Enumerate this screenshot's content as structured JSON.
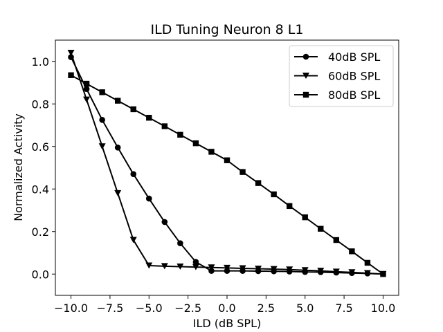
{
  "chart_data": {
    "type": "line",
    "title": "ILD Tuning Neuron 8 L1",
    "xlabel": "ILD (dB SPL)",
    "ylabel": "Normalized Activity",
    "xlim": [
      -11,
      11
    ],
    "ylim": [
      -0.1,
      1.1
    ],
    "xticks": [
      -10.0,
      -7.5,
      -5.0,
      -2.5,
      0.0,
      2.5,
      5.0,
      7.5,
      10.0
    ],
    "xtick_labels": [
      "−10.0",
      "−7.5",
      "−5.0",
      "−2.5",
      "0.0",
      "2.5",
      "5.0",
      "7.5",
      "10.0"
    ],
    "yticks": [
      0.0,
      0.2,
      0.4,
      0.6,
      0.8,
      1.0
    ],
    "ytick_labels": [
      "0.0",
      "0.2",
      "0.4",
      "0.6",
      "0.8",
      "1.0"
    ],
    "grid": false,
    "legend_position": "top-right",
    "x": [
      -10,
      -9,
      -8,
      -7,
      -6,
      -5,
      -4,
      -3,
      -2,
      -1,
      0,
      1,
      2,
      3,
      4,
      5,
      6,
      7,
      8,
      9,
      10
    ],
    "series": [
      {
        "name": "40dB SPL",
        "marker": "circle",
        "color": "#000000",
        "values": [
          1.02,
          0.87,
          0.725,
          0.595,
          0.47,
          0.355,
          0.245,
          0.145,
          0.057,
          0.015,
          0.015,
          0.015,
          0.014,
          0.013,
          0.012,
          0.01,
          0.009,
          0.007,
          0.005,
          0.003,
          0.0
        ]
      },
      {
        "name": "60dB SPL",
        "marker": "triangle-down",
        "color": "#000000",
        "values": [
          1.04,
          0.82,
          0.6,
          0.38,
          0.16,
          0.04,
          0.037,
          0.035,
          0.033,
          0.031,
          0.029,
          0.027,
          0.025,
          0.023,
          0.021,
          0.018,
          0.015,
          0.011,
          0.008,
          0.004,
          0.0
        ]
      },
      {
        "name": "80dB SPL",
        "marker": "square",
        "color": "#000000",
        "values": [
          0.935,
          0.895,
          0.855,
          0.815,
          0.775,
          0.735,
          0.695,
          0.655,
          0.615,
          0.575,
          0.535,
          0.48,
          0.428,
          0.375,
          0.32,
          0.267,
          0.213,
          0.16,
          0.107,
          0.053,
          0.0
        ]
      }
    ]
  }
}
